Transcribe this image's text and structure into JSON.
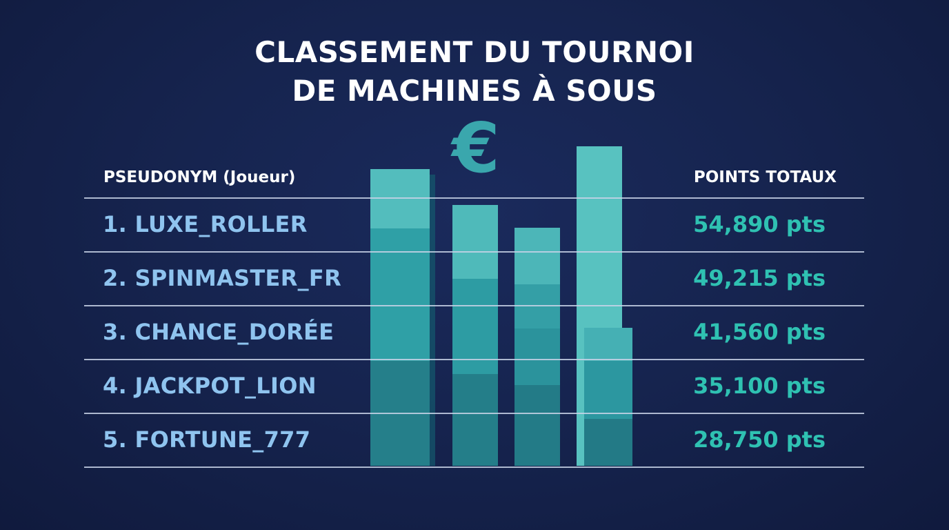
{
  "title": {
    "line1": "CLASSEMENT DU TOURNOI",
    "line2": "DE MACHINES À SOUS"
  },
  "icon": "euro-icon",
  "icon_glyph": "€",
  "table": {
    "header_player": "PSEUDONYM (Joueur)",
    "header_points": "POINTS TOTAUX",
    "rows": [
      {
        "player": "1. LUXE_ROLLER",
        "points": "54,890 pts"
      },
      {
        "player": "2. SPINMASTER_FR",
        "points": "49,215 pts"
      },
      {
        "player": "3. CHANCE_DORÉE",
        "points": "41,560 pts"
      },
      {
        "player": "4. JACKPOT_LION",
        "points": "35,100 pts"
      },
      {
        "player": "5. FORTUNE_777",
        "points": "28,750 pts"
      }
    ]
  },
  "colors": {
    "background": "#16244f",
    "player_text": "#8fc4ef",
    "points_text": "#2fc1b2",
    "bar_light": "#52bcbc",
    "bar_mid": "#2f9ea5",
    "bar_dark": "#237d89"
  }
}
